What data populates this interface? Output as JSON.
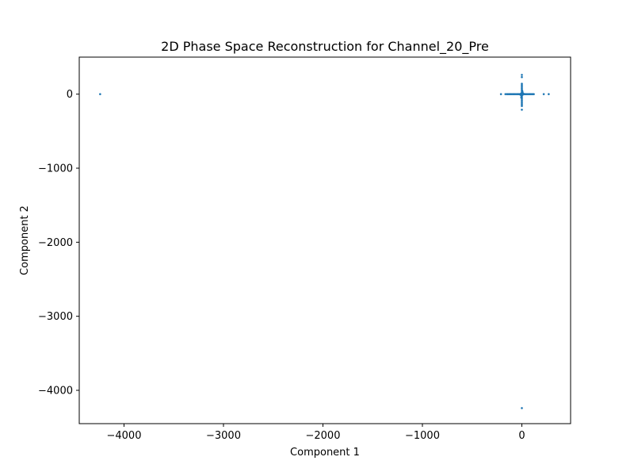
{
  "chart_data": {
    "type": "scatter",
    "title": "2D Phase Space Reconstruction for Channel_20_Pre",
    "xlabel": "Component 1",
    "ylabel": "Component 2",
    "xlim": [
      -4450,
      490
    ],
    "ylim": [
      -4450,
      500
    ],
    "xticks": [
      -4000,
      -3000,
      -2000,
      -1000,
      0
    ],
    "yticks": [
      0,
      -1000,
      -2000,
      -3000,
      -4000
    ],
    "xtick_labels": [
      "−4000",
      "−3000",
      "−2000",
      "−1000",
      "0"
    ],
    "ytick_labels": [
      "0",
      "−1000",
      "−2000",
      "−3000",
      "−4000"
    ],
    "grid": false,
    "legend": "none",
    "marker_color": "#1f77b4",
    "series": [
      {
        "x": [
          -4240,
          0,
          -210,
          -165,
          -150,
          -140,
          -130,
          -120,
          -110,
          -100,
          -90,
          -80,
          -70,
          -60,
          -50,
          -40,
          -30,
          -20,
          -10,
          10,
          20,
          30,
          40,
          50,
          60,
          70,
          80,
          90,
          100,
          110,
          120,
          220,
          270,
          0,
          0,
          0,
          0,
          0,
          0,
          0,
          0,
          0,
          0,
          0,
          0,
          0,
          0,
          0,
          0,
          0,
          0,
          0,
          0,
          -3,
          2,
          4,
          -5,
          6,
          -2,
          -8,
          8,
          5,
          -4,
          12,
          -12,
          15,
          -15,
          18,
          -18,
          3,
          -6,
          9,
          -9
        ],
        "y": [
          0,
          -4240,
          0,
          0,
          0,
          0,
          0,
          0,
          0,
          0,
          0,
          0,
          0,
          0,
          0,
          0,
          0,
          0,
          0,
          0,
          0,
          0,
          0,
          0,
          0,
          0,
          0,
          0,
          0,
          0,
          0,
          0,
          0,
          260,
          230,
          140,
          120,
          100,
          80,
          60,
          40,
          20,
          10,
          -10,
          -20,
          -40,
          -60,
          -80,
          -100,
          -120,
          -140,
          -160,
          -210,
          5,
          -5,
          15,
          -15,
          25,
          -25,
          8,
          -8,
          35,
          -35,
          3,
          -3,
          6,
          -6,
          2,
          -2,
          45,
          -45,
          12,
          -12
        ]
      }
    ]
  }
}
